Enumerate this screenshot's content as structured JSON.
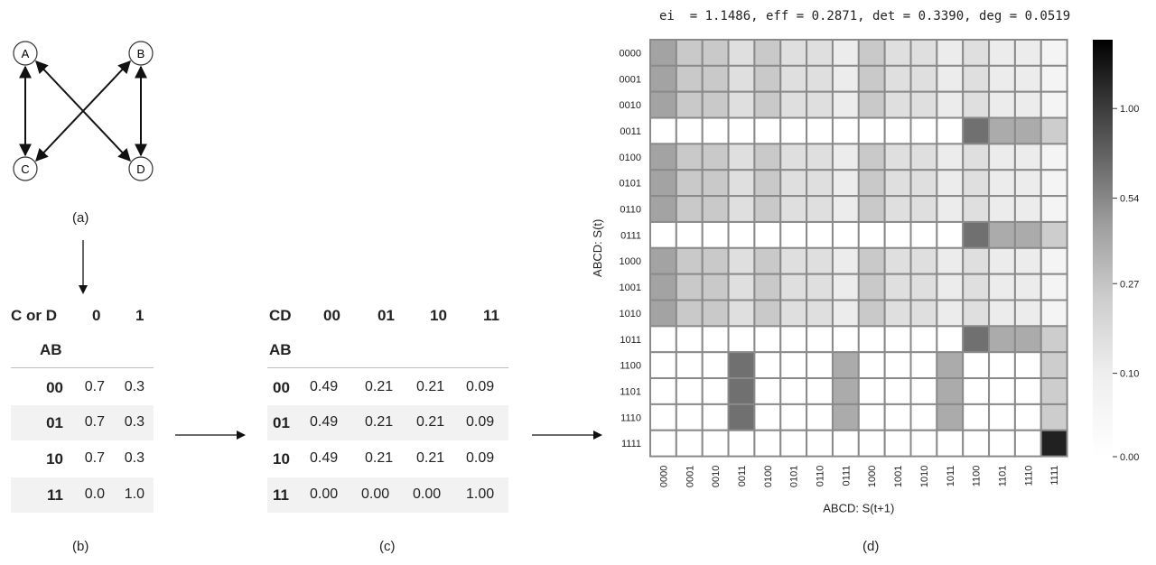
{
  "panel_a": {
    "caption": "(a)",
    "nodes": [
      "A",
      "B",
      "C",
      "D"
    ]
  },
  "panel_b": {
    "caption": "(b)",
    "corner_label": "C or D",
    "row_index_label": "AB",
    "columns": [
      "0",
      "1"
    ],
    "rows": [
      {
        "label": "00",
        "values": [
          "0.7",
          "0.3"
        ]
      },
      {
        "label": "01",
        "values": [
          "0.7",
          "0.3"
        ]
      },
      {
        "label": "10",
        "values": [
          "0.7",
          "0.3"
        ]
      },
      {
        "label": "11",
        "values": [
          "0.0",
          "1.0"
        ]
      }
    ]
  },
  "panel_c": {
    "caption": "(c)",
    "corner_label": "CD",
    "row_index_label": "AB",
    "columns": [
      "00",
      "01",
      "10",
      "11"
    ],
    "rows": [
      {
        "label": "00",
        "values": [
          "0.49",
          "0.21",
          "0.21",
          "0.09"
        ]
      },
      {
        "label": "01",
        "values": [
          "0.49",
          "0.21",
          "0.21",
          "0.09"
        ]
      },
      {
        "label": "10",
        "values": [
          "0.49",
          "0.21",
          "0.21",
          "0.09"
        ]
      },
      {
        "label": "11",
        "values": [
          "0.00",
          "0.00",
          "0.00",
          "1.00"
        ]
      }
    ]
  },
  "panel_d": {
    "caption": "(d)",
    "title": "ei  = 1.1486, eff = 0.2871, det = 0.3390, deg = 0.0519",
    "xlabel": "ABCD: S(t+1)",
    "ylabel": "ABCD: S(t)",
    "colorbar_ticks": [
      "1.00",
      "0.54",
      "0.27",
      "0.10",
      "0.00"
    ]
  },
  "chart_data": {
    "type": "heatmap",
    "title": "ei  = 1.1486, eff = 0.2871, det = 0.3390, deg = 0.0519",
    "xlabel": "ABCD: S(t+1)",
    "ylabel": "ABCD: S(t)",
    "x": [
      "0000",
      "0001",
      "0010",
      "0011",
      "0100",
      "0101",
      "0110",
      "0111",
      "1000",
      "1001",
      "1010",
      "1011",
      "1100",
      "1101",
      "1110",
      "1111"
    ],
    "y": [
      "0000",
      "0001",
      "0010",
      "0011",
      "0100",
      "0101",
      "0110",
      "0111",
      "1000",
      "1001",
      "1010",
      "1011",
      "1100",
      "1101",
      "1110",
      "1111"
    ],
    "colorbar": {
      "ticks": [
        1.0,
        0.54,
        0.27,
        0.1,
        0.0
      ],
      "range": [
        0,
        1.3
      ],
      "scale": "nonlinear",
      "colormap": "white-to-black"
    },
    "values": [
      [
        0.2401,
        0.1029,
        0.1029,
        0.0441,
        0.1029,
        0.0441,
        0.0441,
        0.0189,
        0.1029,
        0.0441,
        0.0441,
        0.0189,
        0.0441,
        0.0189,
        0.0189,
        0.0081
      ],
      [
        0.2401,
        0.1029,
        0.1029,
        0.0441,
        0.1029,
        0.0441,
        0.0441,
        0.0189,
        0.1029,
        0.0441,
        0.0441,
        0.0189,
        0.0441,
        0.0189,
        0.0189,
        0.0081
      ],
      [
        0.2401,
        0.1029,
        0.1029,
        0.0441,
        0.1029,
        0.0441,
        0.0441,
        0.0189,
        0.1029,
        0.0441,
        0.0441,
        0.0189,
        0.0441,
        0.0189,
        0.0189,
        0.0081
      ],
      [
        0,
        0,
        0,
        0,
        0,
        0,
        0,
        0,
        0,
        0,
        0,
        0,
        0.49,
        0.21,
        0.21,
        0.09
      ],
      [
        0.2401,
        0.1029,
        0.1029,
        0.0441,
        0.1029,
        0.0441,
        0.0441,
        0.0189,
        0.1029,
        0.0441,
        0.0441,
        0.0189,
        0.0441,
        0.0189,
        0.0189,
        0.0081
      ],
      [
        0.2401,
        0.1029,
        0.1029,
        0.0441,
        0.1029,
        0.0441,
        0.0441,
        0.0189,
        0.1029,
        0.0441,
        0.0441,
        0.0189,
        0.0441,
        0.0189,
        0.0189,
        0.0081
      ],
      [
        0.2401,
        0.1029,
        0.1029,
        0.0441,
        0.1029,
        0.0441,
        0.0441,
        0.0189,
        0.1029,
        0.0441,
        0.0441,
        0.0189,
        0.0441,
        0.0189,
        0.0189,
        0.0081
      ],
      [
        0,
        0,
        0,
        0,
        0,
        0,
        0,
        0,
        0,
        0,
        0,
        0,
        0.49,
        0.21,
        0.21,
        0.09
      ],
      [
        0.2401,
        0.1029,
        0.1029,
        0.0441,
        0.1029,
        0.0441,
        0.0441,
        0.0189,
        0.1029,
        0.0441,
        0.0441,
        0.0189,
        0.0441,
        0.0189,
        0.0189,
        0.0081
      ],
      [
        0.2401,
        0.1029,
        0.1029,
        0.0441,
        0.1029,
        0.0441,
        0.0441,
        0.0189,
        0.1029,
        0.0441,
        0.0441,
        0.0189,
        0.0441,
        0.0189,
        0.0189,
        0.0081
      ],
      [
        0.2401,
        0.1029,
        0.1029,
        0.0441,
        0.1029,
        0.0441,
        0.0441,
        0.0189,
        0.1029,
        0.0441,
        0.0441,
        0.0189,
        0.0441,
        0.0189,
        0.0189,
        0.0081
      ],
      [
        0,
        0,
        0,
        0,
        0,
        0,
        0,
        0,
        0,
        0,
        0,
        0,
        0.49,
        0.21,
        0.21,
        0.09
      ],
      [
        0,
        0,
        0,
        0.49,
        0,
        0,
        0,
        0.21,
        0,
        0,
        0,
        0.21,
        0,
        0,
        0,
        0.09
      ],
      [
        0,
        0,
        0,
        0.49,
        0,
        0,
        0,
        0.21,
        0,
        0,
        0,
        0.21,
        0,
        0,
        0,
        0.09
      ],
      [
        0,
        0,
        0,
        0.49,
        0,
        0,
        0,
        0.21,
        0,
        0,
        0,
        0.21,
        0,
        0,
        0,
        0.09
      ],
      [
        0,
        0,
        0,
        0,
        0,
        0,
        0,
        0,
        0,
        0,
        0,
        0,
        0,
        0,
        0,
        1.0
      ]
    ]
  }
}
